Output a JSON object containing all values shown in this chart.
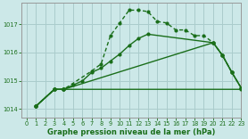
{
  "bg_color": "#cce8e8",
  "grid_color": "#aacccc",
  "line_color": "#1a6e1a",
  "xlabel": "Graphe pression niveau de la mer (hPa)",
  "xlim": [
    -0.5,
    23
  ],
  "ylim": [
    1013.7,
    1017.75
  ],
  "yticks": [
    1014,
    1015,
    1016,
    1017
  ],
  "xticks": [
    0,
    1,
    2,
    3,
    4,
    5,
    6,
    7,
    8,
    9,
    10,
    11,
    12,
    13,
    14,
    15,
    16,
    17,
    18,
    19,
    20,
    21,
    22,
    23
  ],
  "line1_x": [
    1,
    3,
    4,
    23
  ],
  "line1_y": [
    1014.1,
    1014.7,
    1014.7,
    1014.7
  ],
  "line2_x": [
    1,
    3,
    4,
    7,
    8,
    9,
    10,
    11,
    12,
    13,
    14,
    15,
    16,
    17,
    18,
    19,
    20,
    21,
    22,
    23
  ],
  "line2_y": [
    1014.1,
    1014.7,
    1014.7,
    1015.35,
    1015.6,
    1016.6,
    1017.05,
    1017.5,
    1017.5,
    1017.45,
    1017.1,
    1017.05,
    1016.8,
    1016.8,
    1016.6,
    1016.6,
    1016.35,
    1015.9,
    1015.3,
    1014.75
  ],
  "line3_x": [
    1,
    3,
    4,
    5,
    6,
    7,
    8,
    9,
    10,
    11,
    12,
    13,
    20,
    21,
    22,
    23
  ],
  "line3_y": [
    1014.1,
    1014.7,
    1014.7,
    1014.85,
    1015.0,
    1015.3,
    1015.45,
    1015.7,
    1015.95,
    1016.25,
    1016.5,
    1016.65,
    1016.35,
    1015.9,
    1015.3,
    1014.75
  ],
  "line4_x": [
    1,
    3,
    4,
    20,
    21,
    22,
    23
  ],
  "line4_y": [
    1014.1,
    1014.7,
    1014.7,
    1016.35,
    1015.9,
    1015.3,
    1014.75
  ]
}
